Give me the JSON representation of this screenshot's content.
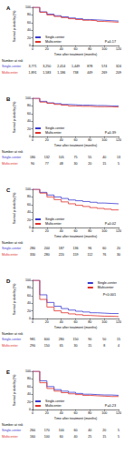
{
  "chart_data": [
    {
      "type": "line",
      "title": "A",
      "line_style": "step",
      "legend": "lower left",
      "xlabel": "Time after treatment (months)",
      "ylabel": "Survival probability (%)",
      "x": [
        0,
        10,
        20,
        30,
        40,
        50,
        60,
        70,
        80,
        90,
        100,
        110,
        120
      ],
      "xlim": [
        0,
        120
      ],
      "xticks": [
        0,
        20,
        40,
        60,
        80,
        100,
        120
      ],
      "ylim": [
        0,
        100
      ],
      "yticks": [
        0,
        20,
        40,
        60,
        80,
        100
      ],
      "annotations": [
        "P=0.17"
      ],
      "series": [
        {
          "name": "Single-center",
          "color": "#3a3ad0",
          "values": [
            100,
            88,
            82,
            78,
            75,
            72,
            70,
            68,
            67,
            66,
            65,
            64,
            63
          ]
        },
        {
          "name": "Multicenter",
          "color": "#e0302a",
          "values": [
            100,
            87,
            80,
            76,
            73,
            70,
            68,
            66,
            65,
            63,
            62,
            61,
            60
          ]
        }
      ],
      "risk_table": {
        "title": "Number at risk",
        "times": [
          0,
          20,
          40,
          60,
          80,
          100,
          120
        ],
        "rows": [
          {
            "name": "Single-center",
            "values": [
              "3,771",
              "3,250",
              "2,414",
              "1,449",
              "878",
              "574",
              "324"
            ]
          },
          {
            "name": "Multicenter",
            "values": [
              "1,891",
              "1,583",
              "1,186",
              "738",
              "449",
              "269",
              "209"
            ]
          }
        ]
      }
    },
    {
      "type": "line",
      "title": "B",
      "line_style": "step",
      "legend": "lower left",
      "xlabel": "Time after treatment (months)",
      "ylabel": "Survival probability (%)",
      "x": [
        0,
        10,
        20,
        30,
        40,
        50,
        60,
        70,
        80,
        90,
        100,
        110,
        120
      ],
      "xlim": [
        0,
        120
      ],
      "xticks": [
        0,
        20,
        40,
        60,
        80,
        100,
        120
      ],
      "ylim": [
        0,
        100
      ],
      "yticks": [
        0,
        20,
        40,
        60,
        80,
        100
      ],
      "annotations": [
        "P=0.39"
      ],
      "series": [
        {
          "name": "Single-center",
          "color": "#3a3ad0",
          "values": [
            100,
            92,
            88,
            86,
            84,
            83,
            82,
            82,
            81,
            81,
            80,
            80,
            80
          ]
        },
        {
          "name": "Multicenter",
          "color": "#e0302a",
          "values": [
            100,
            90,
            87,
            84,
            82,
            80,
            79,
            79,
            78,
            78,
            78,
            77,
            77
          ]
        }
      ],
      "risk_table": {
        "title": "Number at risk",
        "times": [
          0,
          20,
          40,
          60,
          80,
          100,
          120
        ],
        "rows": [
          {
            "name": "Single-center",
            "values": [
              "180",
              "132",
              "105",
              "75",
              "55",
              "40",
              "13"
            ]
          },
          {
            "name": "Multicenter",
            "values": [
              "90",
              "77",
              "48",
              "30",
              "20",
              "15",
              "5"
            ]
          }
        ]
      }
    },
    {
      "type": "line",
      "title": "C",
      "line_style": "step",
      "legend": "lower left",
      "xlabel": "Time after treatment (months)",
      "ylabel": "Survival probability (%)",
      "x": [
        0,
        10,
        20,
        30,
        40,
        50,
        60,
        70,
        80,
        90,
        100,
        110,
        120
      ],
      "xlim": [
        0,
        120
      ],
      "xticks": [
        0,
        20,
        40,
        60,
        80,
        100,
        120
      ],
      "ylim": [
        0,
        100
      ],
      "yticks": [
        0,
        20,
        40,
        60,
        80,
        100
      ],
      "annotations": [
        "P=0.02"
      ],
      "series": [
        {
          "name": "Single-center",
          "color": "#3a3ad0",
          "values": [
            100,
            92,
            85,
            80,
            76,
            72,
            70,
            68,
            66,
            64,
            63,
            62,
            62
          ]
        },
        {
          "name": "Multicenter",
          "color": "#e0302a",
          "values": [
            100,
            90,
            80,
            73,
            67,
            62,
            58,
            55,
            52,
            50,
            48,
            46,
            45
          ]
        }
      ],
      "risk_table": {
        "title": "Number at risk",
        "times": [
          0,
          20,
          40,
          60,
          80,
          100,
          120
        ],
        "rows": [
          {
            "name": "Single-center",
            "values": [
              "280",
              "244",
              "187",
              "136",
              "96",
              "60",
              "20"
            ]
          },
          {
            "name": "Multicenter",
            "values": [
              "330",
              "280",
              "220",
              "159",
              "112",
              "76",
              "30"
            ]
          }
        ]
      }
    },
    {
      "type": "line",
      "title": "D",
      "line_style": "step",
      "legend": "upper right",
      "xlabel": "Time after treatment (months)",
      "ylabel": "Survival probability (%)",
      "x": [
        0,
        10,
        20,
        30,
        40,
        50,
        60,
        70,
        80,
        90,
        100,
        110,
        120
      ],
      "xlim": [
        0,
        120
      ],
      "xticks": [
        0,
        20,
        40,
        60,
        80,
        100,
        120
      ],
      "ylim": [
        0,
        100
      ],
      "yticks": [
        0,
        20,
        40,
        60,
        80,
        100
      ],
      "annotations": [
        "P<0.001"
      ],
      "series": [
        {
          "name": "Single-center",
          "color": "#3a3ad0",
          "values": [
            100,
            62,
            42,
            32,
            26,
            22,
            19,
            17,
            15,
            14,
            13,
            13,
            12
          ]
        },
        {
          "name": "Multicenter",
          "color": "#e0302a",
          "values": [
            100,
            50,
            30,
            20,
            15,
            12,
            10,
            8,
            7,
            6,
            6,
            5,
            5
          ]
        }
      ],
      "risk_table": {
        "title": "Number at risk",
        "times": [
          0,
          20,
          40,
          60,
          80,
          100,
          120
        ],
        "rows": [
          {
            "name": "Single-center",
            "values": [
              "981",
              "600",
              "280",
              "150",
              "90",
              "50",
              "15"
            ]
          },
          {
            "name": "Multicenter",
            "values": [
              "290",
              "150",
              "65",
              "30",
              "15",
              "8",
              "4"
            ]
          }
        ]
      }
    },
    {
      "type": "line",
      "title": "E",
      "line_style": "step",
      "legend": "lower left",
      "xlabel": "Time after treatment (months)",
      "ylabel": "Survival probability (%)",
      "x": [
        0,
        10,
        20,
        30,
        40,
        50,
        60,
        70,
        80,
        90,
        100,
        110,
        120
      ],
      "xlim": [
        0,
        120
      ],
      "xticks": [
        0,
        20,
        40,
        60,
        80,
        100,
        120
      ],
      "ylim": [
        0,
        100
      ],
      "yticks": [
        0,
        20,
        40,
        60,
        80,
        100
      ],
      "annotations": [
        "P=0.23"
      ],
      "series": [
        {
          "name": "Single-center",
          "color": "#3a3ad0",
          "values": [
            100,
            75,
            60,
            52,
            48,
            45,
            42,
            40,
            39,
            38,
            38,
            37,
            37
          ]
        },
        {
          "name": "Multicenter",
          "color": "#e0302a",
          "values": [
            100,
            70,
            55,
            48,
            44,
            41,
            39,
            37,
            36,
            35,
            34,
            34,
            34
          ]
        }
      ],
      "risk_table": {
        "title": "Number at risk",
        "times": [
          0,
          20,
          40,
          60,
          80,
          100,
          120
        ],
        "rows": [
          {
            "name": "Single-center",
            "values": [
              "260",
              "170",
              "100",
              "60",
              "40",
              "20",
              "5"
            ]
          },
          {
            "name": "Multicenter",
            "values": [
              "160",
              "100",
              "60",
              "40",
              "25",
              "15",
              "5"
            ]
          }
        ]
      }
    }
  ]
}
